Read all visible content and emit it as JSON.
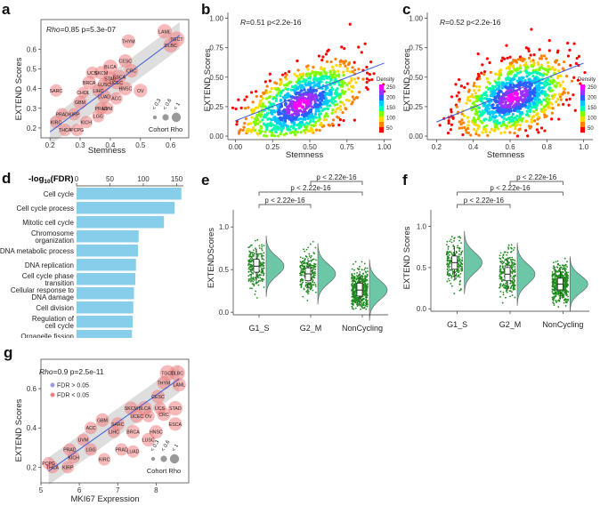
{
  "figure": {
    "panel_labels": [
      "a",
      "b",
      "c",
      "d",
      "e",
      "f",
      "g"
    ]
  },
  "chart_data": [
    {
      "id": "a",
      "type": "scatter",
      "xlabel": "Stemness",
      "ylabel": "EXTEND Scores",
      "stat_label": "Rho",
      "stat_text": "=0.85 p=5.3e-07",
      "xlim": [
        0.17,
        0.66
      ],
      "ylim": [
        0.15,
        0.75
      ],
      "xticks": [
        "0.2",
        "0.3",
        "0.4",
        "0.5",
        "0.6"
      ],
      "xtick_vals": [
        0.2,
        0.3,
        0.4,
        0.5,
        0.6
      ],
      "yticks": [
        "0.2",
        "0.3",
        "0.4",
        "0.5",
        "0.6"
      ],
      "ytick_vals": [
        0.2,
        0.3,
        0.4,
        0.5,
        0.6
      ],
      "legend": {
        "title": "Cohort Rho",
        "labels": [
          "< 0.3",
          "< 0.6",
          "< 1"
        ]
      },
      "points": [
        {
          "label": "TGCT",
          "x": 0.62,
          "y": 0.65,
          "r": 0.8
        },
        {
          "label": "LAML",
          "x": 0.58,
          "y": 0.69,
          "r": 0.7
        },
        {
          "label": "DLBC",
          "x": 0.6,
          "y": 0.62,
          "r": 0.7
        },
        {
          "label": "THYM",
          "x": 0.46,
          "y": 0.64,
          "r": 0.6
        },
        {
          "label": "CESC",
          "x": 0.45,
          "y": 0.54,
          "r": 0.6
        },
        {
          "label": "BLCA",
          "x": 0.4,
          "y": 0.51,
          "r": 0.7
        },
        {
          "label": "CRC",
          "x": 0.47,
          "y": 0.49,
          "r": 0.6
        },
        {
          "label": "ESCA",
          "x": 0.43,
          "y": 0.46,
          "r": 0.6
        },
        {
          "label": "UCS",
          "x": 0.34,
          "y": 0.48,
          "r": 0.5
        },
        {
          "label": "SKCM",
          "x": 0.37,
          "y": 0.48,
          "r": 0.6
        },
        {
          "label": "STAD",
          "x": 0.4,
          "y": 0.45,
          "r": 0.7
        },
        {
          "label": "UCEC",
          "x": 0.42,
          "y": 0.43,
          "r": 0.6
        },
        {
          "label": "BRCA",
          "x": 0.33,
          "y": 0.43,
          "r": 0.6
        },
        {
          "label": "LUSC",
          "x": 0.38,
          "y": 0.42,
          "r": 0.6
        },
        {
          "label": "HNSC",
          "x": 0.45,
          "y": 0.4,
          "r": 0.6
        },
        {
          "label": "LIHC",
          "x": 0.36,
          "y": 0.39,
          "r": 0.5
        },
        {
          "label": "OV",
          "x": 0.5,
          "y": 0.39,
          "r": 0.6
        },
        {
          "label": "SARC",
          "x": 0.22,
          "y": 0.39,
          "r": 0.5
        },
        {
          "label": "CHOL",
          "x": 0.31,
          "y": 0.38,
          "r": 0.4
        },
        {
          "label": "LUAD",
          "x": 0.38,
          "y": 0.36,
          "r": 0.6
        },
        {
          "label": "ACC",
          "x": 0.42,
          "y": 0.35,
          "r": 0.5
        },
        {
          "label": "GBM",
          "x": 0.3,
          "y": 0.33,
          "r": 0.6
        },
        {
          "label": "UVM",
          "x": 0.39,
          "y": 0.3,
          "r": 0.5
        },
        {
          "label": "PRAD",
          "x": 0.24,
          "y": 0.27,
          "r": 0.5
        },
        {
          "label": "PRAD",
          "x": 0.37,
          "y": 0.3,
          "r": 0.5
        },
        {
          "label": "KIRP",
          "x": 0.28,
          "y": 0.27,
          "r": 0.5
        },
        {
          "label": "LGG",
          "x": 0.36,
          "y": 0.26,
          "r": 0.5
        },
        {
          "label": "KICH",
          "x": 0.32,
          "y": 0.23,
          "r": 0.5
        },
        {
          "label": "KIRC",
          "x": 0.22,
          "y": 0.23,
          "r": 0.5
        },
        {
          "label": "THCA",
          "x": 0.25,
          "y": 0.19,
          "r": 0.5
        },
        {
          "label": "PCPG",
          "x": 0.29,
          "y": 0.19,
          "r": 0.5
        }
      ],
      "fit": {
        "x": [
          0.2,
          0.63
        ],
        "y": [
          0.18,
          0.67
        ]
      }
    },
    {
      "id": "b",
      "type": "scatter",
      "xlabel": "Stemness",
      "ylabel": "EXTEND Scores",
      "stat_label": "R",
      "stat_text": "=0.51 p<2.2e-16",
      "xlim": [
        -0.05,
        1.05
      ],
      "ylim": [
        -0.03,
        1.05
      ],
      "xticks": [
        "0.00",
        "0.25",
        "0.50",
        "0.75",
        "1.00"
      ],
      "xtick_vals": [
        0,
        0.25,
        0.5,
        0.75,
        1.0
      ],
      "yticks": [
        "0.00",
        "0.25",
        "0.50",
        "0.75",
        "1.00"
      ],
      "ytick_vals": [
        0,
        0.25,
        0.5,
        0.75,
        1.0
      ],
      "density_legend": {
        "title": "Density",
        "labels": [
          "250",
          "200",
          "150",
          "100",
          "50"
        ]
      },
      "fit": {
        "x": [
          0.0,
          1.0
        ],
        "y": [
          0.13,
          0.62
        ]
      },
      "density_center": {
        "x": 0.44,
        "y": 0.27
      }
    },
    {
      "id": "c",
      "type": "scatter",
      "xlabel": "Stemness",
      "ylabel": "EXTEND Scores",
      "stat_label": "R",
      "stat_text": "=0.52 p<2.2e-16",
      "xlim": [
        0.15,
        1.05
      ],
      "ylim": [
        -0.03,
        1.05
      ],
      "xticks": [
        "0.2",
        "0.4",
        "0.6",
        "0.8",
        "1.0"
      ],
      "xtick_vals": [
        0.2,
        0.4,
        0.6,
        0.8,
        1.0
      ],
      "yticks": [
        "0.00",
        "0.25",
        "0.50",
        "0.75",
        "1.00"
      ],
      "ytick_vals": [
        0,
        0.25,
        0.5,
        0.75,
        1.0
      ],
      "density_legend": {
        "title": "Density",
        "labels": [
          "250",
          "200",
          "150",
          "100",
          "50"
        ]
      },
      "fit": {
        "x": [
          0.2,
          1.0
        ],
        "y": [
          0.12,
          0.62
        ]
      },
      "density_center": {
        "x": 0.62,
        "y": 0.33
      }
    },
    {
      "id": "d",
      "type": "bar",
      "axis_title": "-log",
      "axis_sub": "10",
      "axis_suffix": "(FDR)",
      "xlim": [
        0,
        160
      ],
      "xticks": [
        "0",
        "50",
        "100",
        "150"
      ],
      "xtick_vals": [
        0,
        50,
        100,
        150
      ],
      "categories": [
        "Cell cycle",
        "Cell cycle process",
        "Mitotic cell cycle",
        "Chromosome organization",
        "DNA metabolic process",
        "DNA replication",
        "Cell cycle phase transition",
        "Cellular response to DNA damage",
        "Cell division",
        "Regulation of cell cycle",
        "Organelle fission"
      ],
      "category_lines": [
        [
          "Cell cycle"
        ],
        [
          "Cell cycle process"
        ],
        [
          "Mitotic cell cycle"
        ],
        [
          "Chromosome",
          "organization"
        ],
        [
          "DNA metabolic process"
        ],
        [
          "DNA replication"
        ],
        [
          "Cell cycle phase",
          "transition"
        ],
        [
          "Cellular response to",
          "DNA damage"
        ],
        [
          "Cell division"
        ],
        [
          "Regulation of",
          "cell cycle"
        ],
        [
          "Organelle fission"
        ]
      ],
      "values": [
        157,
        147,
        131,
        93,
        92,
        89,
        88,
        86,
        85,
        84,
        83
      ],
      "color": "#87CEEB"
    },
    {
      "id": "e",
      "type": "violin",
      "ylabel": "EXTENDScores",
      "categories": [
        "G1_S",
        "G2_M",
        "NonCycling"
      ],
      "medians": [
        0.54,
        0.45,
        0.26
      ],
      "q1": [
        0.47,
        0.37,
        0.19
      ],
      "q3": [
        0.62,
        0.52,
        0.34
      ],
      "ylim": [
        -0.03,
        1.2
      ],
      "yticks": [
        "0.0",
        "0.5",
        "1.0"
      ],
      "ytick_vals": [
        0,
        0.5,
        1.0
      ],
      "comparisons": [
        "p < 2.22e-16",
        "p < 2.22e-16",
        "p < 2.22e-16"
      ]
    },
    {
      "id": "f",
      "type": "violin",
      "ylabel": "EXTEND Scores",
      "categories": [
        "G1_S",
        "G2_M",
        "NonCycling"
      ],
      "medians": [
        0.56,
        0.42,
        0.3
      ],
      "q1": [
        0.48,
        0.34,
        0.23
      ],
      "q3": [
        0.64,
        0.5,
        0.37
      ],
      "ylim": [
        -0.03,
        1.2
      ],
      "yticks": [
        "0.0",
        "0.5",
        "1.0"
      ],
      "ytick_vals": [
        0,
        0.5,
        1.0
      ],
      "comparisons": [
        "p < 2.22e-16",
        "p < 2.22e-16",
        "p < 2.22e-16"
      ]
    },
    {
      "id": "g",
      "type": "scatter",
      "xlabel": "MKI67 Expression",
      "ylabel": "EXTEND Scores",
      "stat_label": "Rho",
      "stat_text": "=0.9  p=2.5e-11",
      "xlim": [
        5.0,
        8.85
      ],
      "ylim": [
        0.12,
        0.75
      ],
      "xticks": [
        "5",
        "6",
        "7",
        "8"
      ],
      "xtick_vals": [
        5,
        6,
        7,
        8
      ],
      "yticks": [
        "0.2",
        "0.4",
        "0.6"
      ],
      "ytick_vals": [
        0.2,
        0.4,
        0.6
      ],
      "fdr_legend": [
        "FDR > 0.05",
        "FDR < 0.05"
      ],
      "legend": {
        "title": "Cohort Rho",
        "labels": [
          "< 0.3",
          "< 0.6",
          "< 1"
        ]
      },
      "points": [
        {
          "label": "TGCT",
          "x": 8.3,
          "y": 0.68,
          "r": 0.8
        },
        {
          "label": "DLBC",
          "x": 8.55,
          "y": 0.68,
          "r": 0.8
        },
        {
          "label": "THYM",
          "x": 8.2,
          "y": 0.63,
          "r": 0.6
        },
        {
          "label": "LAML",
          "x": 8.6,
          "y": 0.62,
          "r": 0.6
        },
        {
          "label": "CESC",
          "x": 8.05,
          "y": 0.56,
          "r": 0.6
        },
        {
          "label": "SKCM",
          "x": 7.35,
          "y": 0.5,
          "r": 0.6
        },
        {
          "label": "BLCA",
          "x": 7.7,
          "y": 0.5,
          "r": 0.7
        },
        {
          "label": "UCS",
          "x": 8.1,
          "y": 0.5,
          "r": 0.5
        },
        {
          "label": "STAD",
          "x": 8.5,
          "y": 0.5,
          "r": 0.7
        },
        {
          "label": "CRC",
          "x": 8.2,
          "y": 0.47,
          "r": 0.6
        },
        {
          "label": "UCEC",
          "x": 7.5,
          "y": 0.46,
          "r": 0.6
        },
        {
          "label": "OV",
          "x": 7.8,
          "y": 0.46,
          "r": 0.5
        },
        {
          "label": "GBM",
          "x": 6.6,
          "y": 0.44,
          "r": 0.6
        },
        {
          "label": "SARC",
          "x": 7.0,
          "y": 0.42,
          "r": 0.6
        },
        {
          "label": "ACC",
          "x": 6.3,
          "y": 0.4,
          "r": 0.5
        },
        {
          "label": "LIHC",
          "x": 6.9,
          "y": 0.38,
          "r": 0.5
        },
        {
          "label": "BRCA",
          "x": 7.4,
          "y": 0.38,
          "r": 0.6
        },
        {
          "label": "ESCA",
          "x": 8.5,
          "y": 0.42,
          "r": 0.6
        },
        {
          "label": "HNSC",
          "x": 8.0,
          "y": 0.38,
          "r": 0.6
        },
        {
          "label": "LUSC",
          "x": 7.8,
          "y": 0.34,
          "r": 0.6
        },
        {
          "label": "UVM",
          "x": 6.1,
          "y": 0.34,
          "r": 0.5
        },
        {
          "label": "LGG",
          "x": 6.3,
          "y": 0.29,
          "r": 0.5
        },
        {
          "label": "PRAD",
          "x": 5.75,
          "y": 0.29,
          "r": 0.5
        },
        {
          "label": "PRAD",
          "x": 7.1,
          "y": 0.29,
          "r": 0.5
        },
        {
          "label": "LUAD",
          "x": 7.4,
          "y": 0.28,
          "r": 0.5
        },
        {
          "label": "KICH",
          "x": 5.85,
          "y": 0.25,
          "r": 0.5
        },
        {
          "label": "KIRC",
          "x": 6.65,
          "y": 0.24,
          "r": 0.5
        },
        {
          "label": "PCPG",
          "x": 5.2,
          "y": 0.22,
          "r": 0.5
        },
        {
          "label": "KIRP",
          "x": 5.7,
          "y": 0.2,
          "r": 0.5
        },
        {
          "label": "THCA",
          "x": 5.3,
          "y": 0.2,
          "r": 0.5
        }
      ],
      "fit": {
        "x": [
          5.2,
          8.6
        ],
        "y": [
          0.18,
          0.65
        ]
      }
    }
  ]
}
